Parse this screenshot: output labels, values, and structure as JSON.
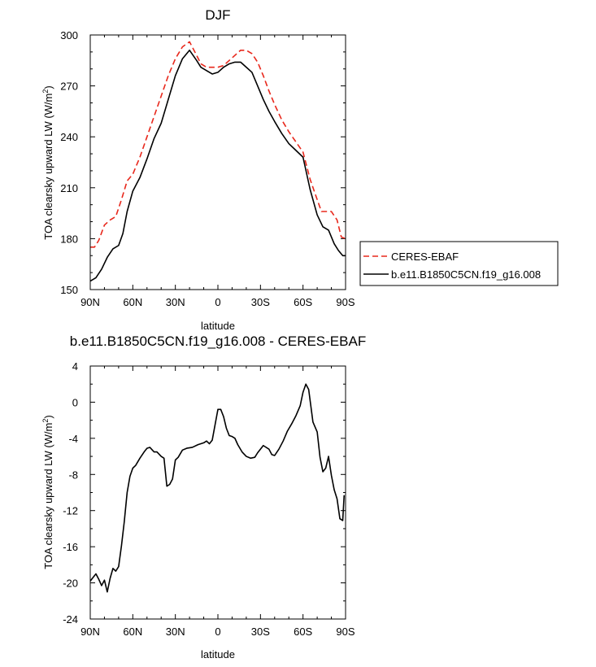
{
  "chart_data": [
    {
      "type": "line",
      "title": "DJF",
      "xlabel": "latitude",
      "ylabel": "TOA clearsky upward LW (W/m²)",
      "xlim": [
        90,
        -90
      ],
      "ylim": [
        150,
        300
      ],
      "x_ticks": [
        90,
        60,
        30,
        0,
        -30,
        -60,
        -90
      ],
      "x_tick_labels": [
        "90N",
        "60N",
        "30N",
        "0",
        "30S",
        "60S",
        "90S"
      ],
      "y_ticks": [
        150,
        180,
        210,
        240,
        270,
        300
      ],
      "y_tick_labels": [
        "150",
        "180",
        "210",
        "240",
        "270",
        "300"
      ],
      "legend_position": "right",
      "series": [
        {
          "name": "CERES-EBAF",
          "color": "#e8281c",
          "style": "dashed",
          "x": [
            90,
            87,
            84,
            80,
            76,
            72,
            68,
            64,
            60,
            55,
            50,
            45,
            40,
            35,
            30,
            25,
            20,
            15,
            12,
            8,
            4,
            0,
            -4,
            -8,
            -12,
            -16,
            -20,
            -24,
            -28,
            -32,
            -36,
            -40,
            -45,
            -50,
            -55,
            -60,
            -65,
            -70,
            -73,
            -76,
            -80,
            -84,
            -87,
            -90
          ],
          "y": [
            175,
            175,
            179,
            188,
            191,
            193,
            203,
            214,
            218,
            228,
            240,
            252,
            264,
            276,
            286,
            293,
            296,
            288,
            283,
            281,
            281,
            281,
            282,
            285,
            288,
            291,
            291,
            289,
            284,
            276,
            267,
            259,
            250,
            243,
            237,
            231,
            215,
            203,
            196,
            196,
            196,
            191,
            181,
            180
          ]
        },
        {
          "name": "b.e11.B1850C5CN.f19_g16.008",
          "color": "#000000",
          "style": "solid",
          "x": [
            90,
            86,
            82,
            78,
            74,
            70,
            67,
            64,
            60,
            55,
            50,
            45,
            40,
            35,
            30,
            25,
            20,
            15,
            12,
            8,
            4,
            0,
            -4,
            -8,
            -12,
            -16,
            -20,
            -24,
            -28,
            -32,
            -36,
            -40,
            -45,
            -50,
            -55,
            -60,
            -65,
            -70,
            -74,
            -78,
            -82,
            -85,
            -88,
            -90
          ],
          "y": [
            155,
            157,
            162,
            169,
            174,
            176,
            183,
            196,
            208,
            216,
            227,
            239,
            248,
            262,
            276,
            286,
            291,
            285,
            281,
            279,
            277,
            278,
            281,
            283,
            284,
            284,
            281,
            278,
            270,
            262,
            255,
            249,
            242,
            236,
            232,
            228,
            209,
            194,
            187,
            185,
            177,
            173,
            170,
            170
          ]
        }
      ]
    },
    {
      "type": "line",
      "title": "b.e11.B1850C5CN.f19_g16.008 - CERES-EBAF",
      "xlabel": "latitude",
      "ylabel": "TOA clearsky upward LW (W/m²)",
      "xlim": [
        90,
        -90
      ],
      "ylim": [
        -24,
        4
      ],
      "x_ticks": [
        90,
        60,
        30,
        0,
        -30,
        -60,
        -90
      ],
      "x_tick_labels": [
        "90N",
        "60N",
        "30N",
        "0",
        "30S",
        "60S",
        "90S"
      ],
      "y_ticks": [
        -24,
        -20,
        -16,
        -12,
        -8,
        -4,
        0,
        4
      ],
      "y_tick_labels": [
        "-24",
        "-20",
        "-16",
        "-12",
        "-8",
        "-4",
        "0",
        "4"
      ],
      "series": [
        {
          "color": "#000000",
          "style": "solid",
          "x": [
            90,
            88,
            86,
            84,
            82,
            80,
            78,
            76,
            74,
            72,
            70,
            68,
            66,
            64,
            62,
            60,
            58,
            55,
            52,
            50,
            48,
            45,
            43,
            40,
            38,
            36,
            34,
            32,
            30,
            28,
            25,
            22,
            18,
            14,
            12,
            10,
            8,
            6,
            4,
            2,
            0,
            -2,
            -4,
            -6,
            -8,
            -10,
            -12,
            -14,
            -17,
            -20,
            -23,
            -26,
            -28,
            -32,
            -36,
            -38,
            -40,
            -43,
            -46,
            -49,
            -52,
            -55,
            -58,
            -60,
            -62,
            -64,
            -67,
            -70,
            -72,
            -74,
            -76,
            -78,
            -80,
            -82,
            -84,
            -86,
            -88,
            -89
          ],
          "y": [
            -19.8,
            -19.4,
            -19.0,
            -19.6,
            -20.3,
            -19.7,
            -21.0,
            -19.5,
            -18.4,
            -18.7,
            -18.2,
            -15.9,
            -13.2,
            -10.0,
            -8.2,
            -7.3,
            -7.0,
            -6.2,
            -5.5,
            -5.1,
            -5.0,
            -5.5,
            -5.5,
            -6.0,
            -6.2,
            -9.3,
            -9.1,
            -8.5,
            -6.4,
            -6.1,
            -5.3,
            -5.1,
            -5.0,
            -4.7,
            -4.6,
            -4.5,
            -4.3,
            -4.6,
            -4.2,
            -2.5,
            -0.8,
            -0.8,
            -1.6,
            -2.9,
            -3.7,
            -3.8,
            -4.0,
            -4.7,
            -5.5,
            -6.0,
            -6.2,
            -6.1,
            -5.6,
            -4.8,
            -5.2,
            -5.8,
            -5.9,
            -5.2,
            -4.3,
            -3.2,
            -2.4,
            -1.5,
            -0.4,
            1.1,
            2.0,
            1.4,
            -2.2,
            -3.3,
            -6.1,
            -7.7,
            -7.3,
            -6.0,
            -8.1,
            -9.7,
            -10.7,
            -12.9,
            -13.1,
            -10.3
          ]
        }
      ]
    }
  ]
}
